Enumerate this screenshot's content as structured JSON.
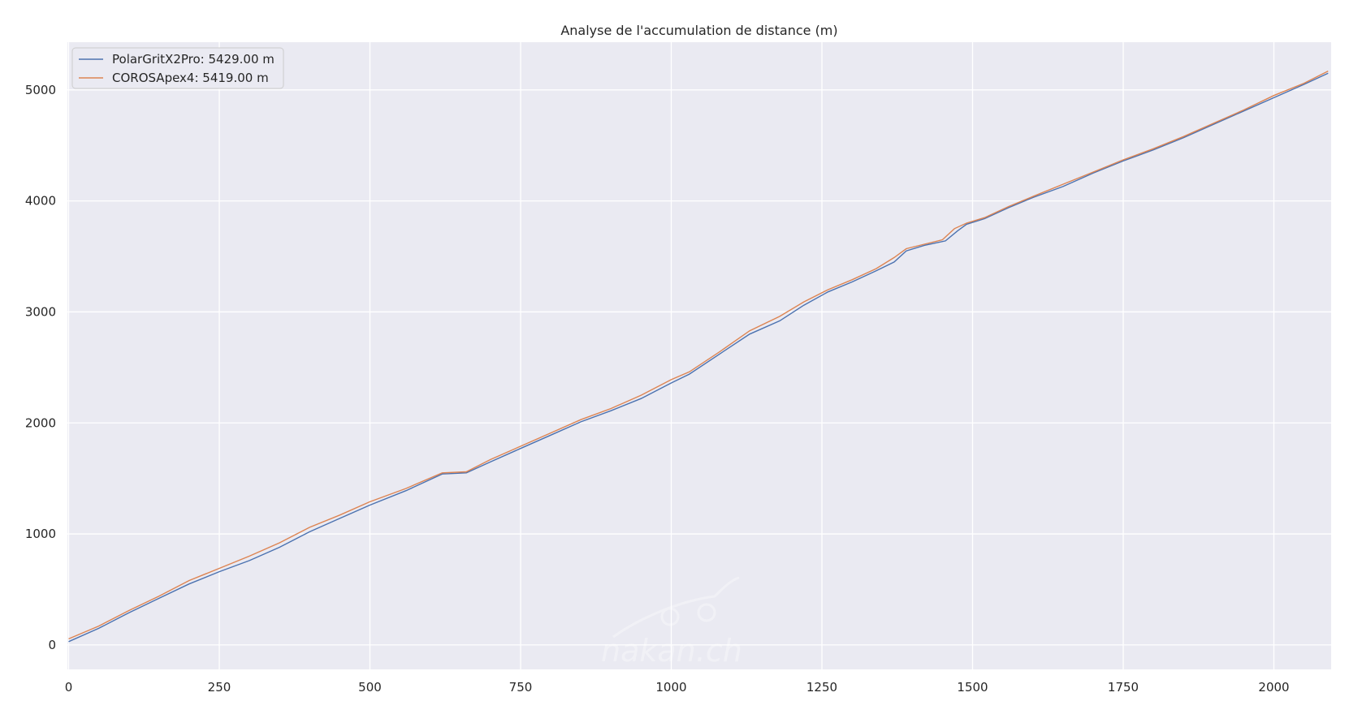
{
  "chart_data": {
    "type": "line",
    "title": "Analyse de l'accumulation de distance (m)",
    "xlabel": "",
    "ylabel": "",
    "xlim": [
      -2,
      2095
    ],
    "ylim": [
      -220,
      5430
    ],
    "x_ticks": [
      0,
      250,
      500,
      750,
      1000,
      1250,
      1500,
      1750,
      2000
    ],
    "y_ticks": [
      0,
      1000,
      2000,
      3000,
      4000,
      5000
    ],
    "x_tick_labels": [
      "0",
      "250",
      "500",
      "750",
      "1000",
      "1250",
      "1500",
      "1750",
      "2000"
    ],
    "y_tick_labels": [
      "0",
      "1000",
      "2000",
      "3000",
      "4000",
      "5000"
    ],
    "grid": true,
    "legend_position": "top-left",
    "background_color": "#eaeaf2",
    "grid_color": "#ffffff",
    "series": [
      {
        "name": "PolarGritX2Pro: 5429.00 m",
        "color": "#4c72b0",
        "x": [
          0,
          50,
          100,
          150,
          200,
          250,
          300,
          350,
          400,
          450,
          500,
          560,
          620,
          660,
          700,
          750,
          800,
          850,
          900,
          950,
          1000,
          1030,
          1080,
          1130,
          1180,
          1220,
          1260,
          1300,
          1340,
          1370,
          1390,
          1420,
          1455,
          1475,
          1490,
          1520,
          1560,
          1600,
          1650,
          1700,
          1750,
          1800,
          1850,
          1900,
          1950,
          2000,
          2050,
          2090
        ],
        "y": [
          30,
          150,
          290,
          420,
          550,
          660,
          760,
          880,
          1020,
          1140,
          1260,
          1390,
          1540,
          1550,
          1650,
          1770,
          1890,
          2010,
          2110,
          2220,
          2360,
          2440,
          2620,
          2800,
          2920,
          3060,
          3180,
          3270,
          3370,
          3450,
          3550,
          3600,
          3640,
          3730,
          3790,
          3840,
          3940,
          4030,
          4130,
          4250,
          4360,
          4460,
          4570,
          4690,
          4810,
          4930,
          5050,
          5150
        ]
      },
      {
        "name": "COROSApex4: 5419.00 m",
        "color": "#dd8452",
        "x": [
          0,
          50,
          100,
          150,
          200,
          250,
          300,
          350,
          400,
          450,
          500,
          560,
          620,
          660,
          700,
          750,
          800,
          850,
          900,
          950,
          1000,
          1030,
          1080,
          1130,
          1180,
          1220,
          1260,
          1300,
          1340,
          1370,
          1390,
          1420,
          1450,
          1470,
          1490,
          1520,
          1560,
          1600,
          1650,
          1700,
          1750,
          1800,
          1850,
          1900,
          1950,
          2000,
          2050,
          2090
        ],
        "y": [
          55,
          170,
          310,
          440,
          580,
          690,
          800,
          920,
          1060,
          1170,
          1290,
          1410,
          1550,
          1560,
          1670,
          1790,
          1910,
          2030,
          2130,
          2250,
          2390,
          2460,
          2640,
          2830,
          2960,
          3090,
          3200,
          3290,
          3390,
          3490,
          3570,
          3610,
          3650,
          3750,
          3800,
          3850,
          3950,
          4040,
          4150,
          4260,
          4370,
          4470,
          4580,
          4700,
          4820,
          4950,
          5060,
          5170
        ]
      }
    ]
  },
  "watermark": "nakan.ch"
}
